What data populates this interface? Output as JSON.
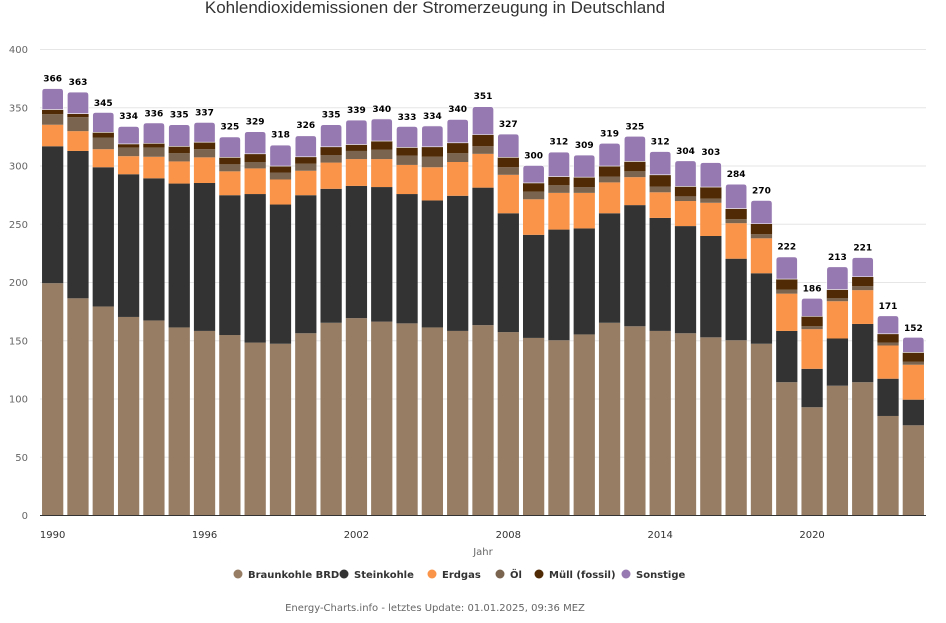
{
  "chart_data": {
    "type": "bar",
    "stacked": true,
    "title": "Kohlendioxidemissionen der Stromerzeugung in Deutschland",
    "xlabel": "Jahr",
    "ylabel": "",
    "ylim": [
      0,
      400
    ],
    "yticks": [
      0,
      50,
      100,
      150,
      200,
      250,
      300,
      350,
      400
    ],
    "xtick_labels": [
      "1990",
      "1996",
      "2002",
      "2008",
      "2014",
      "2020"
    ],
    "grid": true,
    "legend_position": "bottom",
    "categories": [
      "1990",
      "1991",
      "1992",
      "1993",
      "1994",
      "1995",
      "1996",
      "1997",
      "1998",
      "1999",
      "2000",
      "2001",
      "2002",
      "2003",
      "2004",
      "2005",
      "2006",
      "2007",
      "2008",
      "2009",
      "2010",
      "2011",
      "2012",
      "2013",
      "2014",
      "2015",
      "2016",
      "2017",
      "2018",
      "2019",
      "2020",
      "2021",
      "2022",
      "2023",
      "2024"
    ],
    "totals": [
      366,
      363,
      345,
      334,
      336,
      335,
      337,
      325,
      329,
      318,
      326,
      335,
      339,
      340,
      333,
      334,
      340,
      351,
      327,
      300,
      312,
      309,
      319,
      325,
      312,
      304,
      303,
      284,
      270,
      222,
      186,
      213,
      221,
      171,
      152
    ],
    "series": [
      {
        "name": "Braunkohle BRD",
        "color": "#967d64",
        "values": [
          199,
          186,
          179,
          170,
          167,
          161,
          158,
          154.5,
          148,
          147,
          156,
          165,
          169,
          166,
          164.5,
          161,
          158,
          163,
          157,
          152,
          150,
          155,
          165,
          162,
          158,
          156,
          152.5,
          150,
          147,
          114,
          92.5,
          111,
          114,
          85,
          77
        ]
      },
      {
        "name": "Steinkohle",
        "color": "#333333",
        "values": [
          117.5,
          126.5,
          119.5,
          122.5,
          122,
          123.5,
          127,
          120,
          127.5,
          119.5,
          118.5,
          115,
          113.5,
          115.5,
          111,
          109,
          116,
          118,
          102,
          88.5,
          95,
          91,
          94,
          104,
          97,
          92,
          87,
          70,
          60.5,
          44,
          33,
          40.5,
          50,
          32,
          22
        ]
      },
      {
        "name": "Erdgas",
        "color": "#fa9448",
        "values": [
          18.5,
          17,
          15.5,
          15.5,
          18.5,
          19,
          22,
          20.5,
          22,
          21.5,
          21,
          22.5,
          23,
          24,
          25,
          28.5,
          29,
          29,
          33,
          30.5,
          31.5,
          30.5,
          26.5,
          24,
          22,
          21.5,
          28.5,
          30.5,
          30,
          32,
          34,
          32,
          29,
          28.5,
          30
        ]
      },
      {
        "name": "Öl",
        "color": "#7a644f",
        "values": [
          9,
          12,
          10,
          7.5,
          8,
          7,
          7,
          6,
          5.5,
          6,
          6,
          6.5,
          7,
          8,
          8,
          9,
          7.5,
          6.5,
          6.5,
          6.5,
          6.5,
          5,
          5,
          5,
          5,
          4,
          3.5,
          3.5,
          3.5,
          3.5,
          2.5,
          2.5,
          3.5,
          2.5,
          2.5
        ]
      },
      {
        "name": "Müll (fossil)",
        "color": "#4f2a05",
        "values": [
          4,
          3,
          4.5,
          3,
          3.5,
          6,
          6,
          6,
          7,
          5.5,
          6,
          7,
          5.5,
          7.5,
          7,
          8.5,
          9,
          10,
          8.5,
          7.5,
          7.5,
          8.5,
          9,
          8.5,
          10,
          8.5,
          10,
          9,
          9,
          9,
          8.5,
          7.5,
          8,
          7.5,
          8
        ]
      },
      {
        "name": "Sonstige",
        "color": "#9679b0",
        "values": [
          18,
          18.5,
          17,
          15,
          17.5,
          18.5,
          17,
          17.5,
          19,
          18,
          18,
          19,
          21,
          19,
          18,
          18,
          20,
          24,
          20,
          15,
          21,
          19,
          19.5,
          21.5,
          20,
          22,
          21,
          21,
          20,
          19,
          15.5,
          19.5,
          16.5,
          15.5,
          13
        ]
      }
    ]
  },
  "credits": "Energy-Charts.info - letztes Update: 01.01.2025, 09:36 MEZ"
}
